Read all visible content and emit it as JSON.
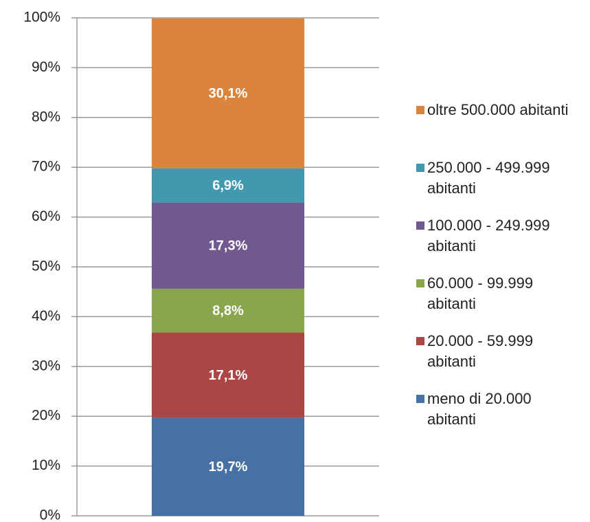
{
  "chart_data": {
    "type": "stacked_bar",
    "categories": [
      null
    ],
    "series": [
      {
        "name": "meno di 20.000 abitanti",
        "color": "#4771a5",
        "values": [
          19.7
        ],
        "value_labels": [
          "19,7%"
        ]
      },
      {
        "name": "20.000 - 59.999 abitanti",
        "color": "#aa4643",
        "values": [
          17.1
        ],
        "value_labels": [
          "17,1%"
        ]
      },
      {
        "name": "60.000 - 99.999 abitanti",
        "color": "#89a54e",
        "values": [
          8.8
        ],
        "value_labels": [
          "8,8%"
        ]
      },
      {
        "name": "100.000 - 249.999 abitanti",
        "color": "#71588f",
        "values": [
          17.3
        ],
        "value_labels": [
          "17,3%"
        ]
      },
      {
        "name": "250.000 - 499.999 abitanti",
        "color": "#4198af",
        "values": [
          6.9
        ],
        "value_labels": [
          "6,9%"
        ]
      },
      {
        "name": "oltre 500.000 abitanti",
        "color": "#db843d",
        "values": [
          30.1
        ],
        "value_labels": [
          "30,1%"
        ]
      }
    ],
    "ylim": [
      0,
      100
    ],
    "yticks": [
      {
        "value": 0,
        "label": "0%"
      },
      {
        "value": 10,
        "label": "10%"
      },
      {
        "value": 20,
        "label": "20%"
      },
      {
        "value": 30,
        "label": "30%"
      },
      {
        "value": 40,
        "label": "40%"
      },
      {
        "value": 50,
        "label": "50%"
      },
      {
        "value": 60,
        "label": "60%"
      },
      {
        "value": 70,
        "label": "70%"
      },
      {
        "value": 80,
        "label": "80%"
      },
      {
        "value": 90,
        "label": "90%"
      },
      {
        "value": 100,
        "label": "100%"
      }
    ],
    "grid": true,
    "legend": "right"
  }
}
